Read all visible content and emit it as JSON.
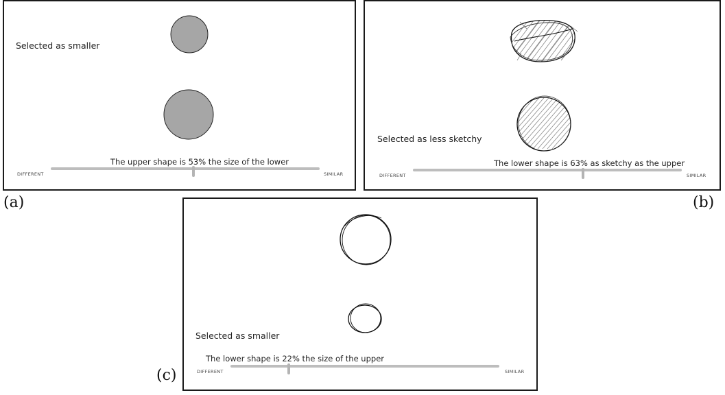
{
  "panels": [
    {
      "id": "a",
      "selected_label": "Selected as smaller",
      "caption": "The upper shape is 53% the size of the lower",
      "left_label": "DIFFERENT",
      "right_label": "SIMILAR",
      "slider_value": 0.53,
      "upper_shape": "filled gray circle",
      "lower_shape": "filled gray circle"
    },
    {
      "id": "b",
      "selected_label": "Selected as less sketchy",
      "caption": "The lower shape is 63% as sketchy as the upper",
      "left_label": "DIFFERENT",
      "right_label": "SIMILAR",
      "slider_value": 0.63,
      "upper_shape": "sketchy hatched blob",
      "lower_shape": "sketchy hatched circle"
    },
    {
      "id": "c",
      "selected_label": "Selected as smaller",
      "caption": "The lower shape is 22% the size of the upper",
      "left_label": "DIFFERENT",
      "right_label": "SIMILAR",
      "slider_value": 0.22,
      "upper_shape": "sketchy outline circle",
      "lower_shape": "sketchy outline circle"
    }
  ],
  "figure_labels": {
    "a": "(a)",
    "b": "(b)",
    "c": "(c)"
  },
  "colors": {
    "shape_fill": "#a6a6a6",
    "track": "#bdbdbd",
    "thumb": "#b4b4b4",
    "border": "#1a1a1a"
  }
}
